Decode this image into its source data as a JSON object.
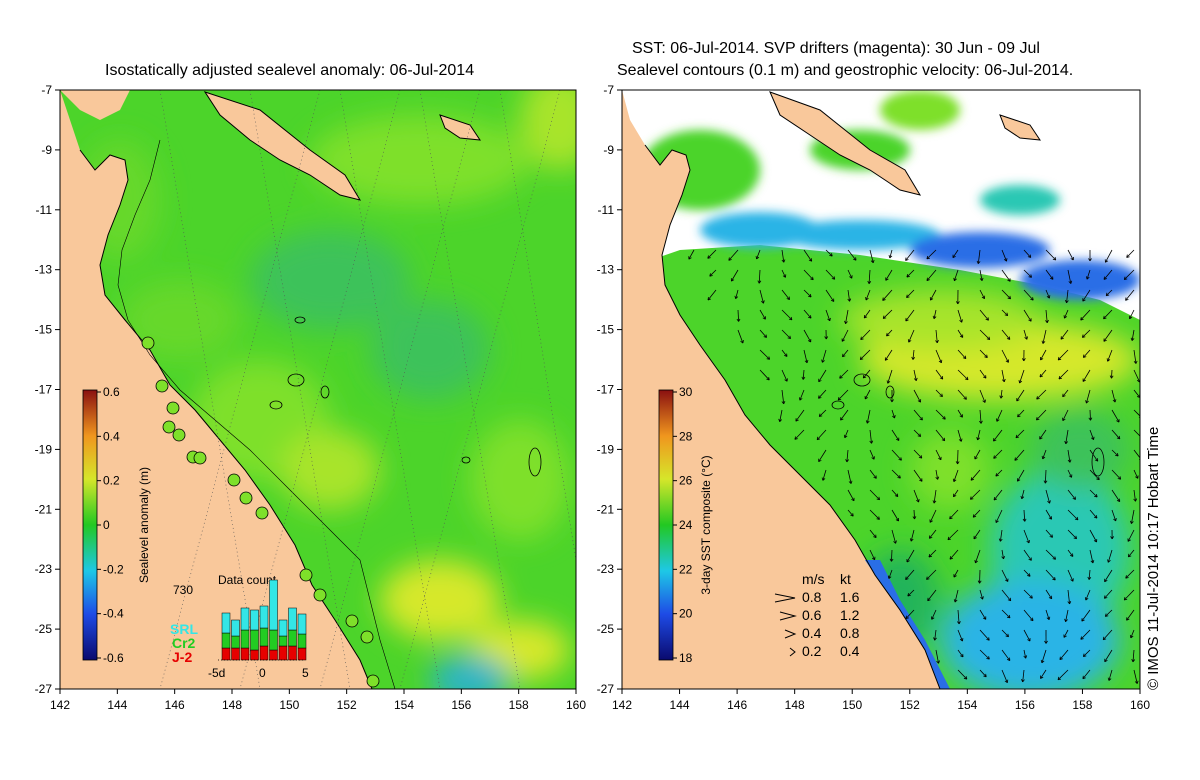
{
  "left_map": {
    "title": "Isostatically adjusted sealevel anomaly: 06-Jul-2014",
    "colorbar_label": "Sealevel anomaly (m)",
    "colorbar_ticks": [
      "0.6",
      "0.4",
      "0.2",
      "0",
      "-0.2",
      "-0.4",
      "-0.6"
    ],
    "histogram": {
      "title": "Data count",
      "max_label": "730",
      "x_labels": [
        "-5d",
        "0",
        "5"
      ],
      "legend": [
        {
          "label": "SRL",
          "color": "#33e6e6"
        },
        {
          "label": "Cr2",
          "color": "#22cc22"
        },
        {
          "label": "J-2",
          "color": "#e60000"
        }
      ]
    }
  },
  "right_map": {
    "title_line1": "SST: 06-Jul-2014. SVP drifters (magenta): 30 Jun - 09 Jul",
    "title_line2": "Sealevel contours (0.1 m) and geostrophic velocity: 06-Jul-2014.",
    "colorbar_label": "3-day SST composite (°C)",
    "colorbar_ticks": [
      "30",
      "28",
      "26",
      "24",
      "22",
      "20",
      "18"
    ],
    "velocity_legend": {
      "header_ms": "m/s",
      "header_kt": "kt",
      "rows": [
        {
          "ms": "0.8",
          "kt": "1.6"
        },
        {
          "ms": "0.6",
          "kt": "1.2"
        },
        {
          "ms": "0.4",
          "kt": "0.8"
        },
        {
          "ms": "0.2",
          "kt": "0.4"
        }
      ]
    }
  },
  "axes": {
    "lat_labels": [
      "-7",
      "-9",
      "-11",
      "-13",
      "-15",
      "-17",
      "-19",
      "-21",
      "-23",
      "-25",
      "-27"
    ],
    "lon_labels": [
      "142",
      "144",
      "146",
      "148",
      "150",
      "152",
      "154",
      "156",
      "158",
      "160"
    ]
  },
  "copyright": "© IMOS 11-Jul-2014 10:17 Hobart Time",
  "colors": {
    "land": "#f9c89b",
    "ocean_green": "#4cd42a",
    "ocean_light": "#7ee02a",
    "ocean_yellow": "#d6e82a"
  }
}
